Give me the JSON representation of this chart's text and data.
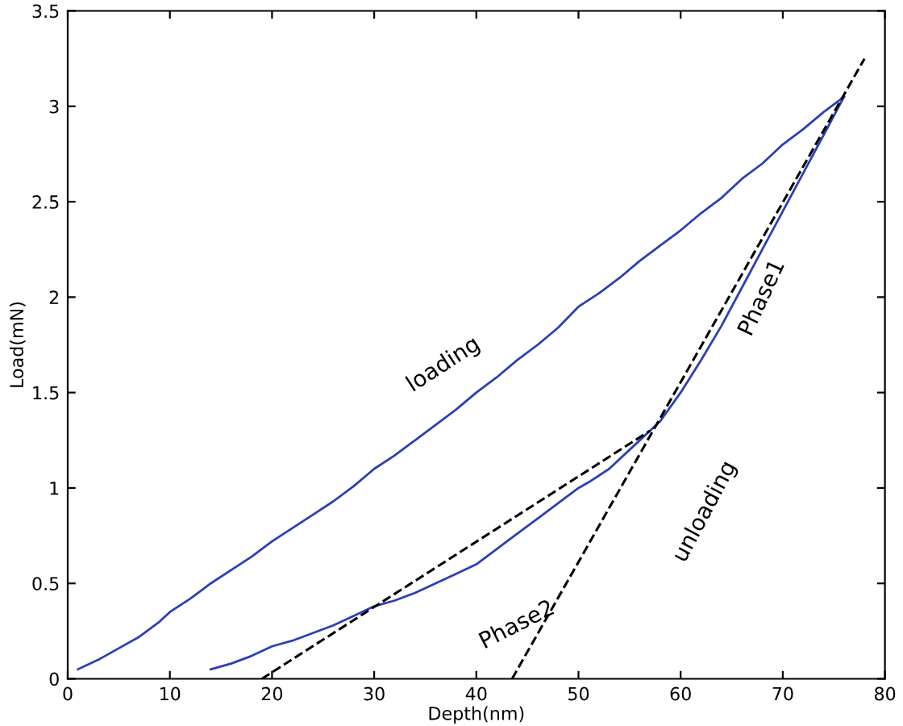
{
  "chart_data": {
    "type": "line",
    "xlabel": "Depth(nm)",
    "ylabel": "Load(mN)",
    "xlim": [
      0,
      80
    ],
    "xticks": [
      0,
      10,
      20,
      30,
      40,
      50,
      60,
      70,
      80
    ],
    "ylim": [
      0,
      3.5
    ],
    "yticks": [
      0,
      0.5,
      1,
      1.5,
      2,
      2.5,
      3,
      3.5
    ],
    "grid": false,
    "legend": false,
    "series": [
      {
        "color": "#2b3fb5",
        "x": [
          1,
          3,
          5,
          7,
          9,
          10,
          12,
          14,
          16,
          18,
          20,
          22,
          24,
          26,
          28,
          30,
          32,
          34,
          36,
          38,
          40,
          42,
          44,
          46,
          48,
          50,
          52,
          54,
          56,
          58,
          60,
          62,
          64,
          66,
          68,
          70,
          72,
          74,
          76
        ],
        "values": [
          0.05,
          0.1,
          0.16,
          0.22,
          0.3,
          0.35,
          0.42,
          0.5,
          0.57,
          0.64,
          0.72,
          0.79,
          0.86,
          0.93,
          1.01,
          1.1,
          1.17,
          1.25,
          1.33,
          1.41,
          1.5,
          1.58,
          1.67,
          1.75,
          1.84,
          1.95,
          2.02,
          2.1,
          2.19,
          2.27,
          2.35,
          2.44,
          2.52,
          2.62,
          2.7,
          2.8,
          2.88,
          2.97,
          3.05
        ]
      },
      {
        "color": "#2b3fb5",
        "x": [
          76,
          74,
          72,
          70,
          68,
          66,
          64,
          62,
          60,
          58,
          57,
          55,
          53,
          51,
          50,
          48,
          46,
          44,
          42,
          40,
          38,
          36,
          34,
          32,
          30,
          28,
          26,
          24,
          22,
          20,
          18,
          16,
          14
        ],
        "values": [
          3.05,
          2.85,
          2.65,
          2.45,
          2.25,
          2.05,
          1.85,
          1.67,
          1.5,
          1.35,
          1.3,
          1.2,
          1.1,
          1.03,
          1.0,
          0.92,
          0.84,
          0.76,
          0.68,
          0.6,
          0.55,
          0.5,
          0.45,
          0.41,
          0.38,
          0.33,
          0.28,
          0.24,
          0.2,
          0.17,
          0.12,
          0.08,
          0.05
        ]
      },
      {
        "color": "#000000",
        "line_style": "dashed",
        "x": [
          43.5,
          78
        ],
        "values": [
          0,
          3.25
        ]
      },
      {
        "color": "#000000",
        "line_style": "dashed",
        "x": [
          19,
          57
        ],
        "values": [
          0,
          1.3
        ]
      }
    ],
    "annotations": [
      "loading",
      "Phase1",
      "unloading",
      "Phase2"
    ]
  }
}
